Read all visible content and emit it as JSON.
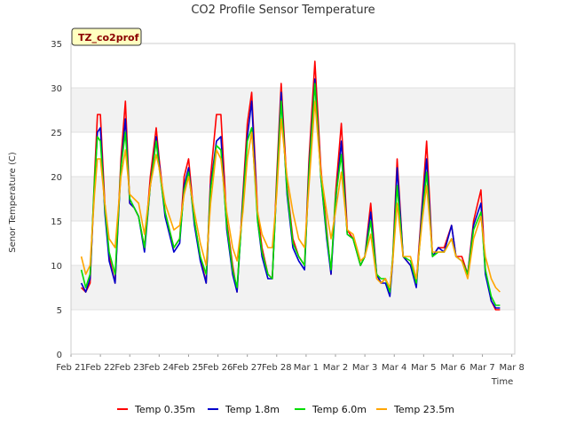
{
  "chart_data": {
    "type": "line",
    "title": "CO2 Profile Sensor Temperature",
    "xlabel": "Time",
    "ylabel": "Senor Temperature (C)",
    "site_label": "TZ_co2prof",
    "ylim": [
      0,
      35
    ],
    "yticks": [
      0,
      5,
      10,
      15,
      20,
      25,
      30,
      35
    ],
    "xlim": [
      0,
      15.1
    ],
    "xtick_values": [
      0,
      1,
      2,
      3,
      4,
      5,
      6,
      7,
      8,
      9,
      10,
      11,
      12,
      13,
      14,
      15
    ],
    "xtick_labels": [
      "Feb 21",
      "Feb 22",
      "Feb 23",
      "Feb 24",
      "Feb 25",
      "Feb 26",
      "Feb 27",
      "Feb 28",
      "Mar 1",
      "Mar 2",
      "Mar 3",
      "Mar 4",
      "Mar 5",
      "Mar 6",
      "Mar 7",
      "Mar 8"
    ],
    "grid": true,
    "legend_position": "bottom",
    "series": [
      {
        "name": "Temp 0.35m",
        "color": "#ff0000",
        "x": [
          0.35,
          0.5,
          0.65,
          0.8,
          0.9,
          1.0,
          1.15,
          1.3,
          1.5,
          1.7,
          1.85,
          2.0,
          2.15,
          2.3,
          2.5,
          2.7,
          2.9,
          3.0,
          3.2,
          3.5,
          3.7,
          3.85,
          4.0,
          4.2,
          4.4,
          4.6,
          4.75,
          4.95,
          5.1,
          5.3,
          5.5,
          5.65,
          5.85,
          6.0,
          6.15,
          6.35,
          6.5,
          6.7,
          6.85,
          7.0,
          7.15,
          7.35,
          7.55,
          7.75,
          7.95,
          8.1,
          8.3,
          8.5,
          8.7,
          8.85,
          9.0,
          9.2,
          9.4,
          9.6,
          9.85,
          10.0,
          10.2,
          10.4,
          10.55,
          10.7,
          10.85,
          10.95,
          11.1,
          11.3,
          11.55,
          11.75,
          11.95,
          12.1,
          12.3,
          12.5,
          12.7,
          12.95,
          13.1,
          13.3,
          13.5,
          13.7,
          13.95,
          14.1,
          14.3,
          14.45,
          14.6
        ],
        "y": [
          7.5,
          7.0,
          8.0,
          20.0,
          27.0,
          27.0,
          17.0,
          11.0,
          8.0,
          22.0,
          28.5,
          17.0,
          16.5,
          15.5,
          12.0,
          20.0,
          25.5,
          22.0,
          16.0,
          12.0,
          13.0,
          20.0,
          22.0,
          15.0,
          11.0,
          8.0,
          20.0,
          27.0,
          27.0,
          15.0,
          10.0,
          7.0,
          18.0,
          26.0,
          29.5,
          16.0,
          12.0,
          9.0,
          8.5,
          20.0,
          30.5,
          19.0,
          13.0,
          11.0,
          10.0,
          22.0,
          33.0,
          21.0,
          14.0,
          9.0,
          18.0,
          26.0,
          14.0,
          13.0,
          10.0,
          11.0,
          17.0,
          9.0,
          8.0,
          8.5,
          7.0,
          11.0,
          22.0,
          11.0,
          10.0,
          8.0,
          17.0,
          24.0,
          11.0,
          12.0,
          12.0,
          14.5,
          11.0,
          11.0,
          9.0,
          15.0,
          18.5,
          9.5,
          6.0,
          5.0,
          5.0
        ]
      },
      {
        "name": "Temp 1.8m",
        "color": "#0000cc",
        "x": [
          0.35,
          0.5,
          0.65,
          0.8,
          0.9,
          1.0,
          1.15,
          1.3,
          1.5,
          1.7,
          1.85,
          2.0,
          2.15,
          2.3,
          2.5,
          2.7,
          2.9,
          3.0,
          3.2,
          3.5,
          3.7,
          3.85,
          4.0,
          4.2,
          4.4,
          4.6,
          4.75,
          4.95,
          5.1,
          5.3,
          5.5,
          5.65,
          5.85,
          6.0,
          6.15,
          6.35,
          6.5,
          6.7,
          6.85,
          7.0,
          7.15,
          7.35,
          7.55,
          7.75,
          7.95,
          8.1,
          8.3,
          8.5,
          8.7,
          8.85,
          9.0,
          9.2,
          9.4,
          9.6,
          9.85,
          10.0,
          10.2,
          10.4,
          10.55,
          10.7,
          10.85,
          10.95,
          11.1,
          11.3,
          11.55,
          11.75,
          11.95,
          12.1,
          12.3,
          12.5,
          12.7,
          12.95,
          13.1,
          13.3,
          13.5,
          13.7,
          13.95,
          14.1,
          14.3,
          14.45,
          14.6
        ],
        "y": [
          8.0,
          7.0,
          8.5,
          19.0,
          25.0,
          25.5,
          16.0,
          10.5,
          8.0,
          21.0,
          26.5,
          17.0,
          16.5,
          15.5,
          11.5,
          19.0,
          24.5,
          21.5,
          15.5,
          11.5,
          12.5,
          19.0,
          21.0,
          14.5,
          10.5,
          8.0,
          19.0,
          24.0,
          24.5,
          14.0,
          9.0,
          7.0,
          17.5,
          24.5,
          28.5,
          15.0,
          11.0,
          8.5,
          8.5,
          19.0,
          29.5,
          18.0,
          12.0,
          10.5,
          9.5,
          21.0,
          31.0,
          20.0,
          13.0,
          9.0,
          17.0,
          24.0,
          13.5,
          13.0,
          10.0,
          11.0,
          16.0,
          9.0,
          8.0,
          8.0,
          6.5,
          10.5,
          21.0,
          11.0,
          10.0,
          7.5,
          16.5,
          22.0,
          11.0,
          12.0,
          11.5,
          14.5,
          11.0,
          10.5,
          9.0,
          14.5,
          17.0,
          9.0,
          6.0,
          5.2,
          5.2
        ]
      },
      {
        "name": "Temp 6.0m",
        "color": "#00dd00",
        "x": [
          0.35,
          0.5,
          0.65,
          0.8,
          0.9,
          1.0,
          1.15,
          1.3,
          1.5,
          1.7,
          1.85,
          2.0,
          2.15,
          2.3,
          2.5,
          2.7,
          2.9,
          3.0,
          3.2,
          3.5,
          3.7,
          3.85,
          4.0,
          4.2,
          4.4,
          4.6,
          4.75,
          4.95,
          5.1,
          5.3,
          5.5,
          5.65,
          5.85,
          6.0,
          6.15,
          6.35,
          6.5,
          6.7,
          6.85,
          7.0,
          7.15,
          7.35,
          7.55,
          7.75,
          7.95,
          8.1,
          8.3,
          8.5,
          8.7,
          8.85,
          9.0,
          9.2,
          9.4,
          9.6,
          9.85,
          10.0,
          10.2,
          10.4,
          10.55,
          10.7,
          10.85,
          10.95,
          11.1,
          11.3,
          11.55,
          11.75,
          11.95,
          12.1,
          12.3,
          12.5,
          12.7,
          12.95,
          13.1,
          13.3,
          13.5,
          13.7,
          13.95,
          14.1,
          14.3,
          14.45,
          14.6
        ],
        "y": [
          9.5,
          7.5,
          9.0,
          19.5,
          24.5,
          24.0,
          16.5,
          11.5,
          9.0,
          21.0,
          25.0,
          17.5,
          16.5,
          15.5,
          12.0,
          19.0,
          24.0,
          21.0,
          16.0,
          12.0,
          13.0,
          18.5,
          20.5,
          15.0,
          11.0,
          9.0,
          18.5,
          23.5,
          23.0,
          14.5,
          9.5,
          7.5,
          17.0,
          24.0,
          25.5,
          15.0,
          11.5,
          9.0,
          8.5,
          19.0,
          28.5,
          18.5,
          12.5,
          11.0,
          10.0,
          20.5,
          30.5,
          20.0,
          13.5,
          9.5,
          17.5,
          22.5,
          13.5,
          13.0,
          10.0,
          11.0,
          15.0,
          9.0,
          8.5,
          8.5,
          7.0,
          11.0,
          19.0,
          11.0,
          10.5,
          8.0,
          15.5,
          20.5,
          11.0,
          11.5,
          11.5,
          13.0,
          11.0,
          10.5,
          9.0,
          14.0,
          16.0,
          9.5,
          6.5,
          5.5,
          5.5
        ]
      },
      {
        "name": "Temp 23.5m",
        "color": "#ffa500",
        "x": [
          0.35,
          0.5,
          0.65,
          0.8,
          0.9,
          1.0,
          1.15,
          1.3,
          1.5,
          1.7,
          1.85,
          2.0,
          2.15,
          2.3,
          2.5,
          2.7,
          2.9,
          3.0,
          3.2,
          3.5,
          3.7,
          3.85,
          4.0,
          4.2,
          4.4,
          4.6,
          4.75,
          4.95,
          5.1,
          5.3,
          5.5,
          5.65,
          5.85,
          6.0,
          6.15,
          6.35,
          6.5,
          6.7,
          6.85,
          7.0,
          7.15,
          7.35,
          7.55,
          7.75,
          7.95,
          8.1,
          8.3,
          8.5,
          8.7,
          8.85,
          9.0,
          9.2,
          9.4,
          9.6,
          9.85,
          10.0,
          10.2,
          10.4,
          10.55,
          10.7,
          10.85,
          10.95,
          11.1,
          11.3,
          11.55,
          11.75,
          11.95,
          12.1,
          12.3,
          12.5,
          12.7,
          12.95,
          13.1,
          13.3,
          13.5,
          13.7,
          13.95,
          14.1,
          14.3,
          14.45,
          14.6
        ],
        "y": [
          11.0,
          9.0,
          10.0,
          18.0,
          22.0,
          22.0,
          17.0,
          13.0,
          12.0,
          20.0,
          23.0,
          18.0,
          17.5,
          17.0,
          13.5,
          19.0,
          22.5,
          21.0,
          17.0,
          14.0,
          14.5,
          18.0,
          20.0,
          16.0,
          12.5,
          10.0,
          17.0,
          23.0,
          22.0,
          16.0,
          12.0,
          10.5,
          16.0,
          22.0,
          25.0,
          16.0,
          13.5,
          12.0,
          12.0,
          18.0,
          26.5,
          20.0,
          16.0,
          13.0,
          12.0,
          19.0,
          28.5,
          20.5,
          16.0,
          13.0,
          16.0,
          20.5,
          14.0,
          13.5,
          10.5,
          11.0,
          13.5,
          8.5,
          8.0,
          8.5,
          7.5,
          10.5,
          17.0,
          11.0,
          11.0,
          8.5,
          15.0,
          19.0,
          11.5,
          11.5,
          11.5,
          13.0,
          11.0,
          10.5,
          8.5,
          13.0,
          15.5,
          11.0,
          8.5,
          7.5,
          7.0
        ]
      }
    ]
  }
}
